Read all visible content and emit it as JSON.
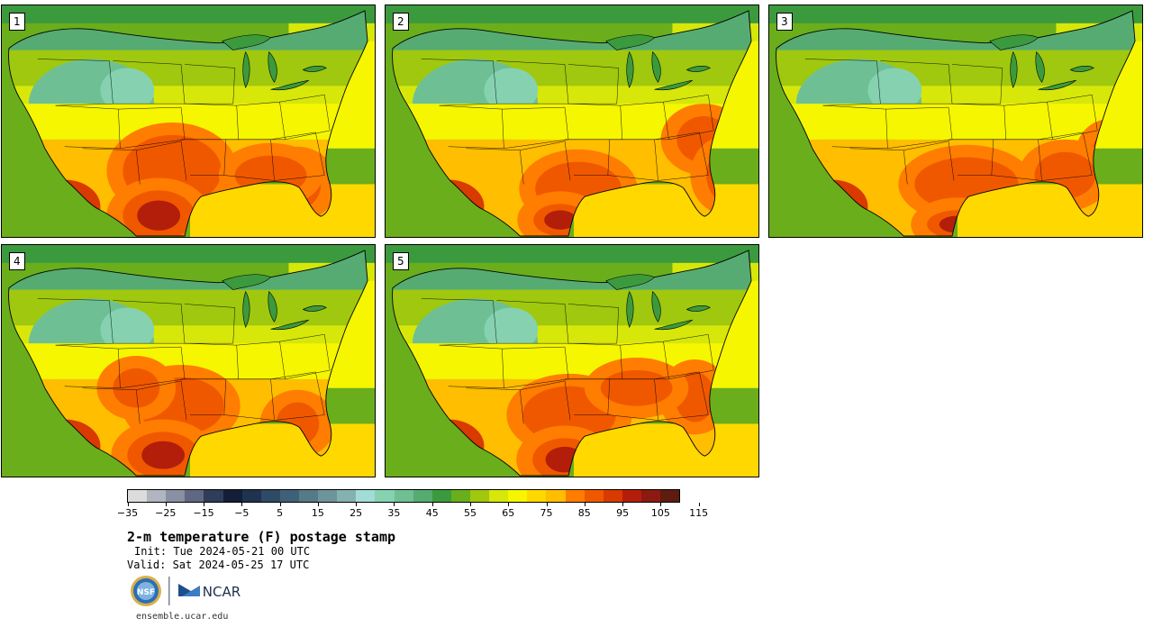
{
  "stamps": [
    {
      "label": "1",
      "variant": 0
    },
    {
      "label": "2",
      "variant": 1
    },
    {
      "label": "3",
      "variant": 2
    },
    {
      "label": "4",
      "variant": 3
    },
    {
      "label": "5",
      "variant": 4
    }
  ],
  "colorbar": {
    "colors": [
      "#dcdcdc",
      "#b2b5c0",
      "#8a90a3",
      "#5e6882",
      "#2f3d5a",
      "#141e36",
      "#1f3350",
      "#2f4a66",
      "#3f6178",
      "#557a88",
      "#6d949b",
      "#84b1b1",
      "#a2dcd6",
      "#86d2b0",
      "#6ec094",
      "#56ab72",
      "#3c9a3e",
      "#6aae1c",
      "#9fc80e",
      "#d7e70a",
      "#f5f600",
      "#ffd800",
      "#ffbe00",
      "#ff7d00",
      "#f05800",
      "#d93a00",
      "#b31e0a",
      "#8c1a10",
      "#5e1c10"
    ],
    "tick_labels": [
      "−35",
      "−25",
      "−15",
      "−5",
      "5",
      "15",
      "25",
      "35",
      "45",
      "55",
      "65",
      "75",
      "85",
      "95",
      "105",
      "115"
    ]
  },
  "title": "2-m temperature (F) postage stamp",
  "init_text": "Init: Tue 2024-05-21 00 UTC",
  "valid_text": "Valid: Sat 2024-05-25 17 UTC",
  "logos": {
    "nsf_text": "NSF",
    "ncar_text": "NCAR"
  },
  "url": "ensemble.ucar.edu"
}
